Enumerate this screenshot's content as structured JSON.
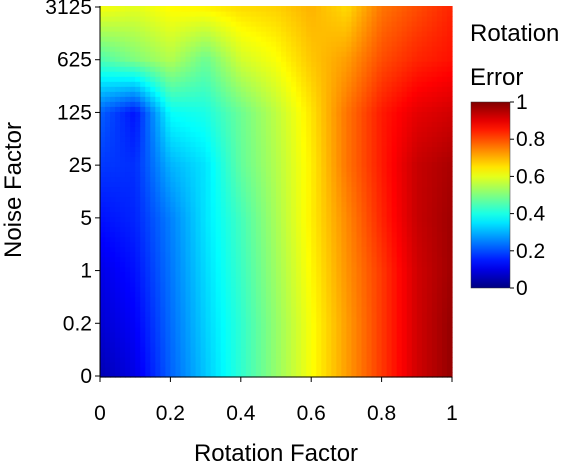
{
  "chart_data": {
    "type": "heatmap",
    "title": "",
    "xlabel": "Rotation Factor",
    "ylabel": "Noise Factor",
    "x_ticks": [
      "0",
      "0.2",
      "0.4",
      "0.6",
      "0.8",
      "1"
    ],
    "x_range": [
      0,
      1
    ],
    "y_ticks": [
      "0",
      "0.2",
      "1",
      "5",
      "25",
      "125",
      "625",
      "3125"
    ],
    "y_scale": "categorical-log5",
    "colorbar": {
      "title_line1": "Rotation",
      "title_line2": "Error",
      "ticks": [
        "0",
        "0.2",
        "0.4",
        "0.6",
        "0.8",
        "1"
      ],
      "range": [
        0,
        1
      ],
      "colormap": "jet"
    },
    "grid": false,
    "x": [
      0,
      0.1,
      0.2,
      0.3,
      0.4,
      0.5,
      0.6,
      0.7,
      0.8,
      0.9,
      1.0
    ],
    "y": [
      "0",
      "0.2",
      "1",
      "5",
      "25",
      "125",
      "625",
      "3125"
    ],
    "z": [
      [
        0.05,
        0.1,
        0.22,
        0.32,
        0.42,
        0.52,
        0.62,
        0.72,
        0.82,
        0.92,
        0.98
      ],
      [
        0.08,
        0.12,
        0.23,
        0.33,
        0.42,
        0.52,
        0.62,
        0.72,
        0.82,
        0.92,
        0.98
      ],
      [
        0.1,
        0.14,
        0.24,
        0.34,
        0.43,
        0.53,
        0.63,
        0.73,
        0.82,
        0.92,
        0.97
      ],
      [
        0.14,
        0.16,
        0.25,
        0.35,
        0.44,
        0.54,
        0.64,
        0.74,
        0.84,
        0.93,
        0.97
      ],
      [
        0.18,
        0.17,
        0.3,
        0.35,
        0.47,
        0.55,
        0.64,
        0.76,
        0.85,
        0.93,
        0.96
      ],
      [
        0.22,
        0.14,
        0.38,
        0.4,
        0.48,
        0.56,
        0.65,
        0.76,
        0.85,
        0.9,
        0.92
      ],
      [
        0.45,
        0.5,
        0.55,
        0.48,
        0.58,
        0.62,
        0.68,
        0.72,
        0.8,
        0.84,
        0.86
      ],
      [
        0.62,
        0.6,
        0.63,
        0.64,
        0.66,
        0.67,
        0.7,
        0.66,
        0.76,
        0.8,
        0.84
      ]
    ]
  }
}
